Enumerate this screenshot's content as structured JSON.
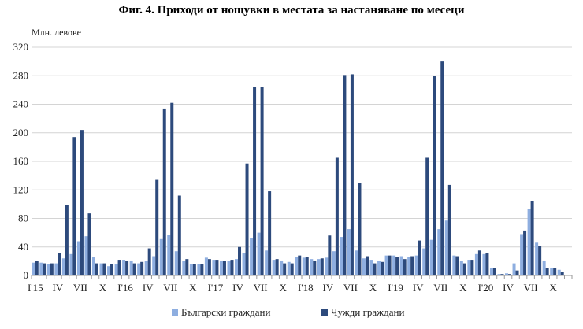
{
  "chart_data": {
    "type": "bar",
    "title": "Фиг. 4. Приходи от нощувки в местата за настаняване по месеци",
    "ylabel": "Млн. левове",
    "xlabel": "",
    "ylim": [
      0,
      320
    ],
    "yticks": [
      0,
      40,
      80,
      120,
      160,
      200,
      240,
      280,
      320
    ],
    "grid": true,
    "legend_position": "bottom",
    "x_tick_labels": [
      {
        "index": 0,
        "label": "I'15"
      },
      {
        "index": 3,
        "label": "IV"
      },
      {
        "index": 6,
        "label": "VII"
      },
      {
        "index": 9,
        "label": "X"
      },
      {
        "index": 12,
        "label": "I'16"
      },
      {
        "index": 15,
        "label": "IV"
      },
      {
        "index": 18,
        "label": "VII"
      },
      {
        "index": 21,
        "label": "X"
      },
      {
        "index": 24,
        "label": "I'17"
      },
      {
        "index": 27,
        "label": "IV"
      },
      {
        "index": 30,
        "label": "VII"
      },
      {
        "index": 33,
        "label": "X"
      },
      {
        "index": 36,
        "label": "I'18"
      },
      {
        "index": 39,
        "label": "IV"
      },
      {
        "index": 42,
        "label": "VII"
      },
      {
        "index": 45,
        "label": "X"
      },
      {
        "index": 48,
        "label": "I'19"
      },
      {
        "index": 51,
        "label": "IV"
      },
      {
        "index": 54,
        "label": "VII"
      },
      {
        "index": 57,
        "label": "X"
      },
      {
        "index": 60,
        "label": "I'20"
      },
      {
        "index": 63,
        "label": "IV"
      },
      {
        "index": 66,
        "label": "VII"
      },
      {
        "index": 69,
        "label": "X"
      }
    ],
    "series": [
      {
        "name": "Български граждани",
        "color": "#8eaee0",
        "values": [
          18,
          18,
          16,
          17,
          24,
          30,
          48,
          55,
          26,
          17,
          13,
          16,
          22,
          21,
          17,
          20,
          27,
          51,
          57,
          34,
          21,
          16,
          16,
          25,
          22,
          21,
          20,
          23,
          31,
          52,
          60,
          35,
          22,
          21,
          19,
          26,
          25,
          23,
          23,
          25,
          34,
          54,
          65,
          35,
          24,
          22,
          20,
          28,
          28,
          27,
          26,
          28,
          38,
          50,
          65,
          77,
          28,
          20,
          22,
          30,
          30,
          11,
          2,
          3,
          17,
          58,
          93,
          46,
          21,
          10,
          8,
          0
        ]
      },
      {
        "name": "Чужди граждани",
        "color": "#2d4a7c",
        "values": [
          20,
          17,
          17,
          31,
          99,
          194,
          204,
          87,
          17,
          17,
          16,
          22,
          20,
          17,
          19,
          38,
          134,
          234,
          242,
          112,
          23,
          16,
          16,
          23,
          22,
          20,
          22,
          40,
          157,
          264,
          264,
          118,
          23,
          17,
          17,
          28,
          26,
          21,
          24,
          56,
          165,
          281,
          282,
          130,
          27,
          17,
          19,
          28,
          26,
          23,
          27,
          49,
          165,
          280,
          300,
          127,
          27,
          17,
          22,
          35,
          31,
          10,
          2,
          2,
          7,
          63,
          104,
          41,
          10,
          10,
          5,
          0
        ]
      }
    ]
  }
}
